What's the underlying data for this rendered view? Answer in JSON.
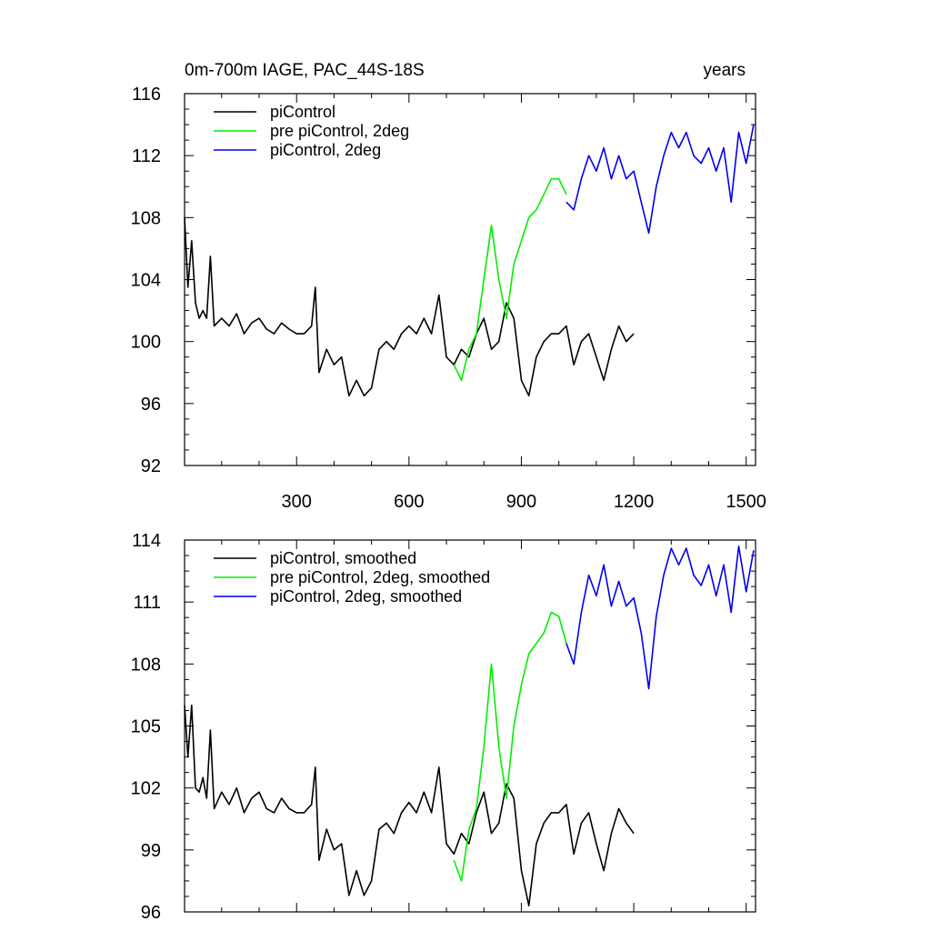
{
  "chart_data": [
    {
      "type": "line",
      "title": "0m-700m IAGE, PAC_44S-18S",
      "right_title": "years",
      "xlim": [
        1,
        1525
      ],
      "ylim": [
        92,
        116
      ],
      "xticks": [
        300,
        600,
        900,
        1200,
        1500
      ],
      "xtick_labels": [
        "300",
        "600",
        "900",
        "1200",
        "1500"
      ],
      "yticks": [
        92,
        96,
        100,
        104,
        108,
        112,
        116
      ],
      "ytick_labels": [
        "92",
        "96",
        "100",
        "104",
        "108",
        "112",
        "116"
      ],
      "legend_position": "top-left",
      "series": [
        {
          "name": "piControl",
          "color": "#000000",
          "x": [
            1,
            10,
            20,
            30,
            40,
            50,
            60,
            70,
            80,
            100,
            120,
            140,
            160,
            180,
            200,
            220,
            240,
            260,
            280,
            300,
            320,
            340,
            350,
            360,
            380,
            400,
            420,
            440,
            460,
            480,
            500,
            520,
            540,
            560,
            580,
            600,
            620,
            640,
            660,
            680,
            700,
            720,
            740,
            760,
            780,
            800,
            820,
            840,
            860,
            880,
            900,
            920,
            940,
            960,
            980,
            1000,
            1020,
            1040,
            1060,
            1080,
            1100,
            1120,
            1140,
            1160,
            1180,
            1200
          ],
          "values": [
            108,
            103.5,
            106.5,
            102.5,
            101.5,
            102,
            101.5,
            105.5,
            101,
            101.5,
            101,
            101.8,
            100.5,
            101.2,
            101.5,
            100.8,
            100.5,
            101.2,
            100.8,
            100.5,
            100.5,
            101,
            103.5,
            98,
            99.5,
            98.5,
            99,
            96.5,
            97.5,
            96.5,
            97,
            99.5,
            100,
            99.5,
            100.5,
            101,
            100.5,
            101.5,
            100.5,
            103,
            99,
            98.5,
            99.5,
            99,
            100.5,
            101.5,
            99.5,
            100,
            102.5,
            101.5,
            97.5,
            96.5,
            99,
            100,
            100.5,
            100.5,
            101,
            98.5,
            100,
            100.5,
            99,
            97.5,
            99.5,
            101,
            100,
            100.5
          ]
        },
        {
          "name": "pre piControl, 2deg",
          "color": "#00ee00",
          "x": [
            720,
            740,
            760,
            780,
            800,
            820,
            840,
            860,
            880,
            900,
            920,
            940,
            960,
            980,
            1000,
            1020
          ],
          "values": [
            98.5,
            97.5,
            99.5,
            100.5,
            104,
            107.5,
            104,
            101.5,
            105,
            106.5,
            108,
            108.5,
            109.5,
            110.5,
            110.5,
            109.5
          ]
        },
        {
          "name": "piControl, 2deg",
          "color": "#0000ee",
          "x": [
            1020,
            1040,
            1060,
            1080,
            1100,
            1120,
            1140,
            1160,
            1180,
            1200,
            1220,
            1240,
            1260,
            1280,
            1300,
            1320,
            1340,
            1360,
            1380,
            1400,
            1420,
            1440,
            1460,
            1480,
            1500,
            1520
          ],
          "values": [
            109,
            108.5,
            110.5,
            112,
            111,
            112.5,
            110.5,
            112,
            110.5,
            111,
            109,
            107,
            110,
            112,
            113.5,
            112.5,
            113.5,
            112,
            111.5,
            112.5,
            111,
            112.5,
            109,
            113.5,
            111.5,
            114
          ]
        }
      ]
    },
    {
      "type": "line",
      "title": "",
      "xlim": [
        1,
        1525
      ],
      "ylim": [
        96,
        114
      ],
      "xticks": [
        300,
        600,
        900,
        1200,
        1500
      ],
      "xtick_labels": [
        "",
        "",
        "",
        "",
        ""
      ],
      "yticks": [
        96,
        99,
        102,
        105,
        108,
        111,
        114
      ],
      "ytick_labels": [
        "96",
        "99",
        "102",
        "105",
        "108",
        "111",
        "114"
      ],
      "legend_position": "top-left",
      "series": [
        {
          "name": "piControl, smoothed",
          "color": "#000000",
          "x": [
            1,
            10,
            20,
            30,
            40,
            50,
            60,
            70,
            80,
            100,
            120,
            140,
            160,
            180,
            200,
            220,
            240,
            260,
            280,
            300,
            320,
            340,
            350,
            360,
            380,
            400,
            420,
            440,
            460,
            480,
            500,
            520,
            540,
            560,
            580,
            600,
            620,
            640,
            660,
            680,
            700,
            720,
            740,
            760,
            780,
            800,
            820,
            840,
            860,
            880,
            900,
            920,
            940,
            960,
            980,
            1000,
            1020,
            1040,
            1060,
            1080,
            1100,
            1120,
            1140,
            1160,
            1180,
            1200
          ],
          "values": [
            106,
            103.5,
            106,
            102,
            101.8,
            102.5,
            101.5,
            104.8,
            101,
            101.8,
            101.2,
            102,
            100.8,
            101.5,
            101.8,
            101,
            100.8,
            101.5,
            101,
            100.8,
            100.8,
            101.2,
            103,
            98.5,
            100,
            99,
            99.3,
            96.8,
            98,
            96.8,
            97.5,
            100,
            100.3,
            99.8,
            100.8,
            101.3,
            100.8,
            101.8,
            100.8,
            103,
            99.3,
            98.8,
            99.8,
            99.3,
            100.8,
            101.8,
            99.8,
            100.3,
            102.2,
            101.5,
            98,
            96.3,
            99.3,
            100.3,
            100.8,
            100.8,
            101.2,
            98.8,
            100.3,
            100.8,
            99.3,
            98,
            99.8,
            101,
            100.3,
            99.8
          ]
        },
        {
          "name": "pre piControl, 2deg, smoothed",
          "color": "#00ee00",
          "x": [
            720,
            740,
            760,
            780,
            800,
            820,
            840,
            860,
            880,
            900,
            920,
            940,
            960,
            980,
            1000,
            1020
          ],
          "values": [
            98.5,
            97.5,
            100,
            101,
            104,
            108,
            104,
            101.5,
            105,
            107,
            108.5,
            109,
            109.5,
            110.5,
            110.3,
            109
          ]
        },
        {
          "name": "piControl, 2deg, smoothed",
          "color": "#0000ee",
          "x": [
            1020,
            1040,
            1060,
            1080,
            1100,
            1120,
            1140,
            1160,
            1180,
            1200,
            1220,
            1240,
            1260,
            1280,
            1300,
            1320,
            1340,
            1360,
            1380,
            1400,
            1420,
            1440,
            1460,
            1480,
            1500,
            1520
          ],
          "values": [
            109,
            108,
            110.5,
            112.3,
            111.3,
            112.8,
            110.8,
            112,
            110.8,
            111.2,
            109.5,
            106.8,
            110.3,
            112.3,
            113.6,
            112.8,
            113.6,
            112.3,
            111.8,
            112.8,
            111.3,
            112.8,
            110.5,
            113.7,
            111.5,
            113.5
          ]
        }
      ]
    }
  ]
}
